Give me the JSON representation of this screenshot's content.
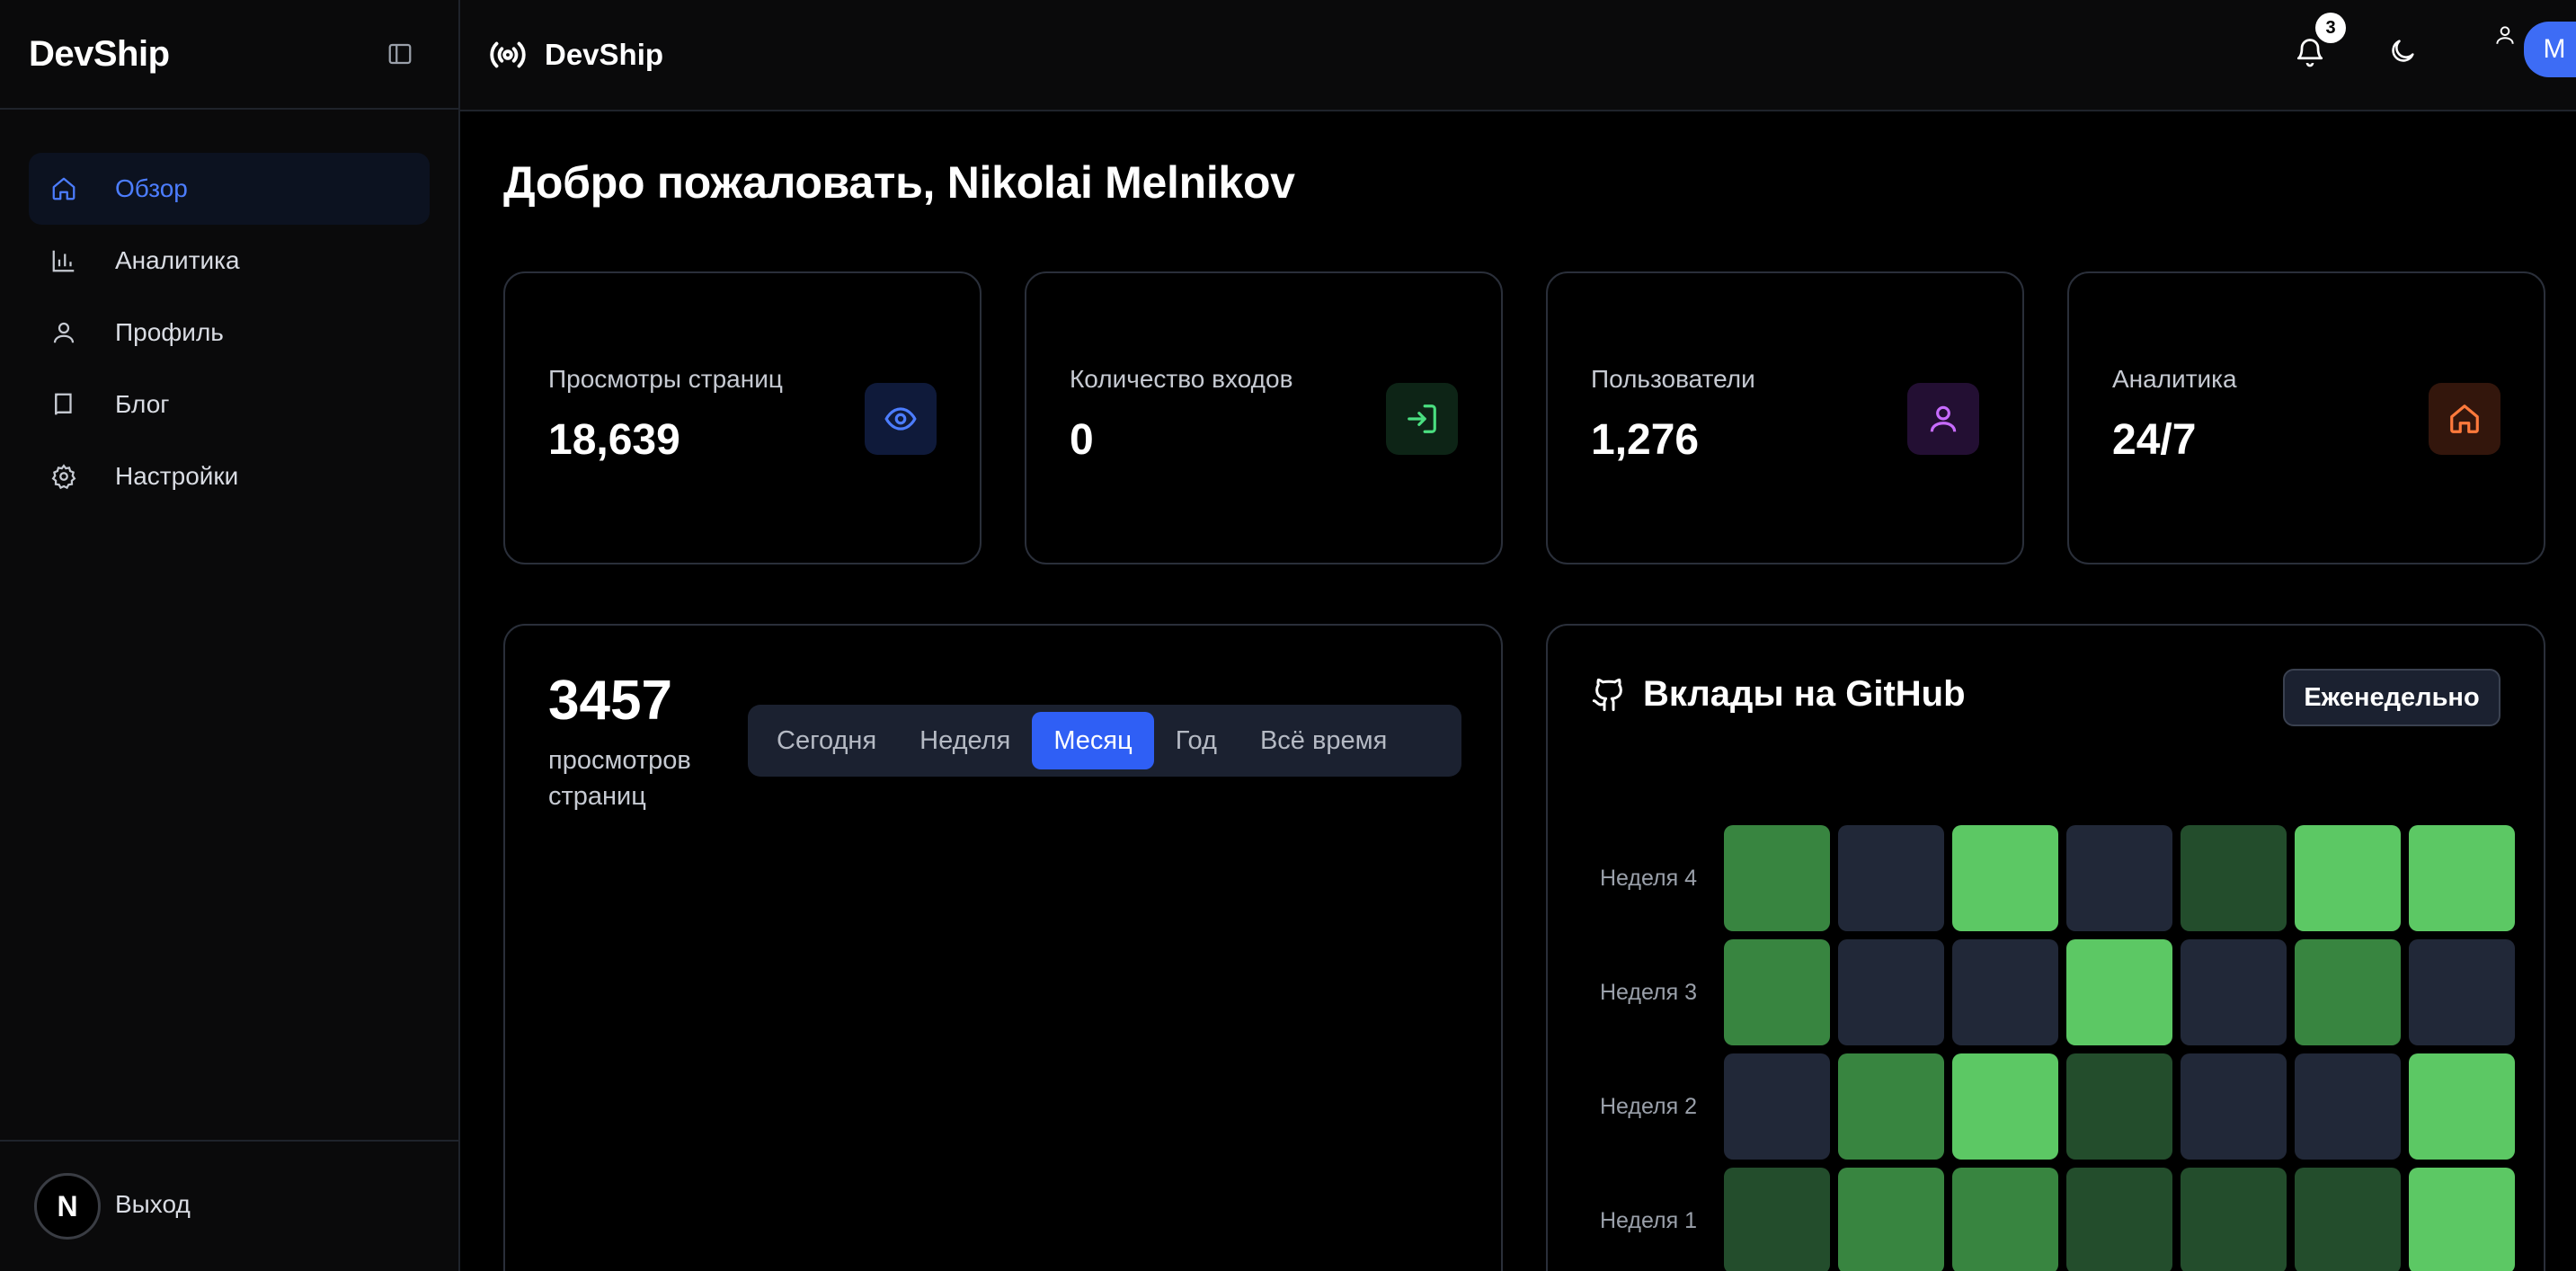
{
  "sidebar": {
    "brand": "DevShip",
    "items": [
      {
        "label": "Обзор",
        "icon": "home-icon",
        "active": true
      },
      {
        "label": "Аналитика",
        "icon": "bar-chart-icon"
      },
      {
        "label": "Профиль",
        "icon": "user-icon"
      },
      {
        "label": "Блог",
        "icon": "book-icon"
      },
      {
        "label": "Настройки",
        "icon": "gear-icon"
      }
    ],
    "logout": {
      "logo": "N",
      "label": "Выход"
    }
  },
  "header": {
    "title": "DevShip",
    "notifications_count": "3",
    "avatar_initial": "M"
  },
  "welcome": "Добро пожаловать, Nikolai Melnikov",
  "stats": [
    {
      "label": "Просмотры страниц",
      "value": "18,639",
      "icon": "eye-icon",
      "color": "#4c7dff",
      "bg": "#0f1a3a"
    },
    {
      "label": "Количество входов",
      "value": "0",
      "icon": "login-icon",
      "color": "#4ade80",
      "bg": "#0d2416"
    },
    {
      "label": "Пользователи",
      "value": "1,276",
      "icon": "user-icon",
      "color": "#c76bff",
      "bg": "#230f33"
    },
    {
      "label": "Аналитика",
      "value": "24/7",
      "icon": "home-icon",
      "color": "#ff7a3c",
      "bg": "#33160c"
    }
  ],
  "views_panel": {
    "value": "3457",
    "subtitle": "просмотров страниц",
    "tabs": [
      "Сегодня",
      "Неделя",
      "Месяц",
      "Год",
      "Всё время"
    ],
    "active_tab": 2
  },
  "github_panel": {
    "title": "Вклады на GitHub",
    "period_button": "Еженедельно",
    "levels_colors": {
      "0": "#212838",
      "1": "#234d2c",
      "2": "#388540",
      "3": "#5cc864"
    },
    "rows": [
      {
        "label": "Неделя 4",
        "levels": [
          2,
          0,
          3,
          0,
          1,
          3,
          3
        ]
      },
      {
        "label": "Неделя 3",
        "levels": [
          2,
          0,
          0,
          3,
          0,
          2,
          0
        ]
      },
      {
        "label": "Неделя 2",
        "levels": [
          0,
          2,
          3,
          1,
          0,
          0,
          3
        ]
      },
      {
        "label": "Неделя 1",
        "levels": [
          1,
          2,
          2,
          1,
          1,
          1,
          3
        ]
      }
    ]
  }
}
